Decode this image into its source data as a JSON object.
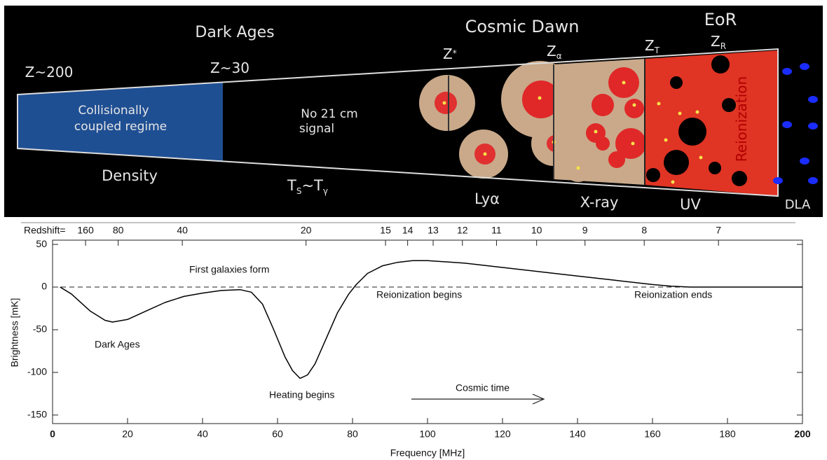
{
  "diagram": {
    "eras": {
      "dark_ages": "Dark Ages",
      "cosmic_dawn": "Cosmic Dawn",
      "eor": "EoR"
    },
    "z200": "Z~200",
    "z30": "Z~30",
    "z_star": {
      "base": "Z",
      "sub": "*"
    },
    "z_alpha": {
      "base": "Z",
      "sub": "α"
    },
    "z_t": {
      "base": "Z",
      "sub": "T"
    },
    "z_r": {
      "base": "Z",
      "sub": "R"
    },
    "collisional": [
      "Collisionally",
      "coupled regime"
    ],
    "no_signal": [
      "No 21 cm",
      "signal"
    ],
    "density": "Density",
    "ts_tgamma": {
      "t1": "T",
      "s1": "S",
      "mid": "~T",
      "s2": "γ"
    },
    "lya": "Lyα",
    "xray": "X-ray",
    "uv": "UV",
    "dla": "DLA",
    "reionization": "Reionization"
  },
  "chart_data": {
    "type": "line",
    "xlabel": "Frequency [MHz]",
    "ylabel": "Brightness [mK]",
    "x2label": "Redshift=",
    "x": [
      2,
      5,
      10,
      14,
      16,
      20,
      25,
      30,
      35,
      40,
      45,
      50,
      53,
      56,
      59,
      62,
      64,
      66,
      68,
      70,
      73,
      76,
      79,
      81,
      84,
      88,
      92,
      96,
      100,
      110,
      120,
      130,
      140,
      150,
      160,
      165,
      170,
      200
    ],
    "series": [
      {
        "color": "#000000",
        "values": [
          0,
          -8,
          -28,
          -39,
          -41,
          -38,
          -28,
          -18,
          -11,
          -7,
          -4,
          -3,
          -6,
          -20,
          -50,
          -82,
          -98,
          -107,
          -103,
          -90,
          -60,
          -30,
          -8,
          3,
          16,
          25,
          29,
          31,
          31,
          28,
          23,
          18,
          13,
          8,
          3,
          1,
          0,
          0
        ]
      }
    ],
    "reference_line": 0,
    "xlim": [
      0,
      200
    ],
    "ylim": [
      -160,
      55
    ],
    "xticks": [
      0,
      20,
      40,
      60,
      80,
      100,
      120,
      140,
      160,
      180,
      200
    ],
    "yticks": [
      -150,
      -100,
      -50,
      0,
      50
    ],
    "x2ticks": [
      {
        "value": 8.8,
        "label": "160"
      },
      {
        "value": 17.5,
        "label": "80"
      },
      {
        "value": 34.6,
        "label": "40"
      },
      {
        "value": 67.6,
        "label": "20"
      },
      {
        "value": 88.8,
        "label": "15"
      },
      {
        "value": 94.7,
        "label": "14"
      },
      {
        "value": 101.5,
        "label": "13"
      },
      {
        "value": 109.3,
        "label": "12"
      },
      {
        "value": 118.4,
        "label": "11"
      },
      {
        "value": 129.1,
        "label": "10"
      },
      {
        "value": 142,
        "label": "9"
      },
      {
        "value": 157.8,
        "label": "8"
      },
      {
        "value": 177.6,
        "label": "7"
      }
    ],
    "annotations": [
      "First galaxies form",
      "Reionization begins",
      "Reionization ends",
      "Dark Ages",
      "Heating begins",
      "Cosmic time"
    ]
  }
}
